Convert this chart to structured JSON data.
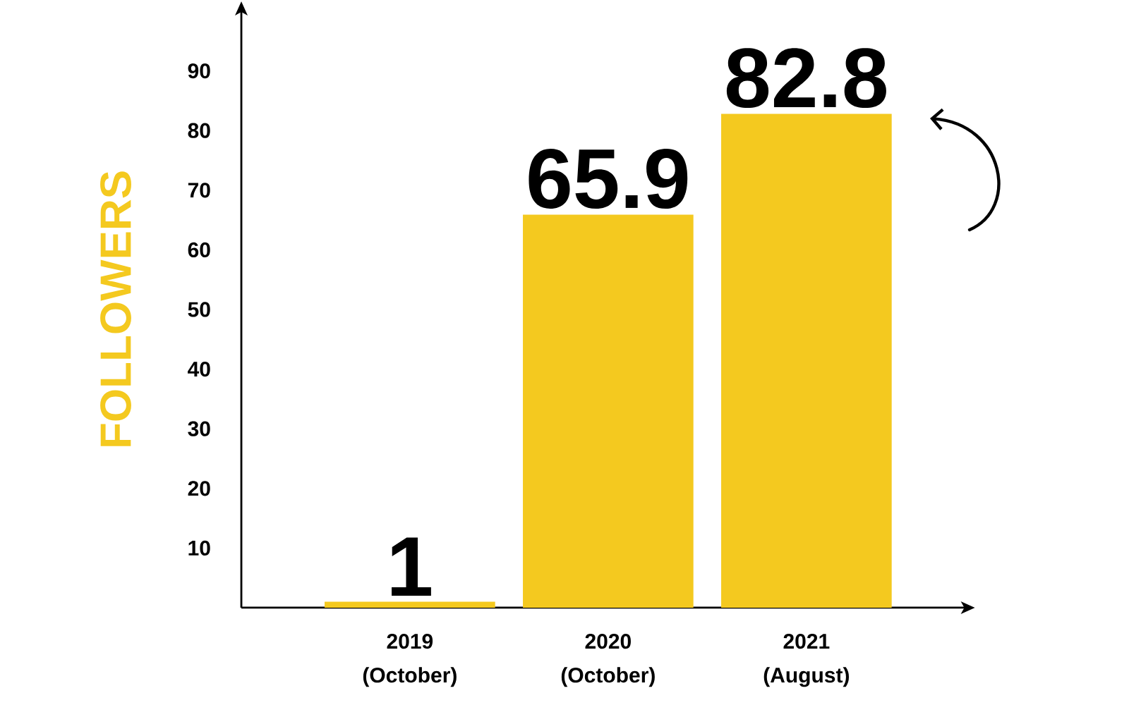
{
  "chart_data": {
    "type": "bar",
    "ylabel": "FOLLOWERS",
    "categories": [
      "2019 (October)",
      "2020 (October)",
      "2021 (August)"
    ],
    "values": [
      1,
      65.9,
      82.8
    ],
    "color": "#f4c91f",
    "ylim": [
      0,
      100
    ],
    "yticks": [
      10,
      20,
      30,
      40,
      50,
      60,
      70,
      80,
      90
    ],
    "data_labels": true
  }
}
